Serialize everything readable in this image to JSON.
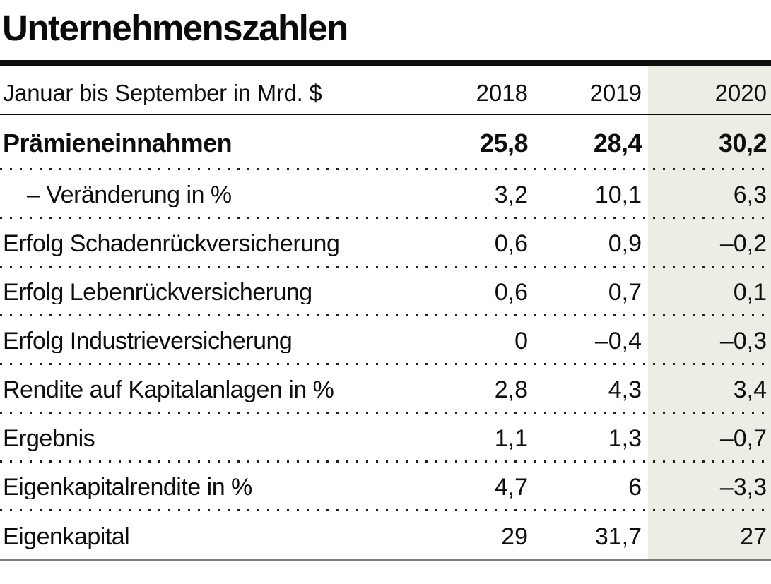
{
  "title": "Unternehmenszahlen",
  "table": {
    "unit_label": "Januar bis September in Mrd. $",
    "years": [
      "2018",
      "2019",
      "2020"
    ],
    "rows": [
      {
        "label": "Prämieneinnahmen",
        "values": [
          "25,8",
          "28,4",
          "30,2"
        ],
        "bold": true,
        "indent": false
      },
      {
        "label": "– Veränderung in %",
        "values": [
          "3,2",
          "10,1",
          "6,3"
        ],
        "bold": false,
        "indent": true
      },
      {
        "label": "Erfolg Schadenrückversicherung",
        "values": [
          "0,6",
          "0,9",
          "–0,2"
        ],
        "bold": false,
        "indent": false
      },
      {
        "label": "Erfolg Lebenrückversicherung",
        "values": [
          "0,6",
          "0,7",
          "0,1"
        ],
        "bold": false,
        "indent": false
      },
      {
        "label": "Erfolg Industrieversicherung",
        "values": [
          "0",
          "–0,4",
          "–0,3"
        ],
        "bold": false,
        "indent": false
      },
      {
        "label": "Rendite auf Kapitalanlagen in %",
        "values": [
          "2,8",
          "4,3",
          "3,4"
        ],
        "bold": false,
        "indent": false
      },
      {
        "label": "Ergebnis",
        "values": [
          "1,1",
          "1,3",
          "–0,7"
        ],
        "bold": false,
        "indent": false
      },
      {
        "label": "Eigenkapitalrendite in %",
        "values": [
          "4,7",
          "6",
          "–3,3"
        ],
        "bold": false,
        "indent": false
      },
      {
        "label": "Eigenkapital",
        "values": [
          "29",
          "31,7",
          "27"
        ],
        "bold": false,
        "indent": false
      }
    ]
  },
  "colors": {
    "highlight_column_bg": "#edece5",
    "rule_black": "#0d0d0d",
    "bottom_rule_gray": "#7c7c7c",
    "dotted_separator": "#1f1f1f",
    "text": "#0e0e0e"
  },
  "chart_data": {
    "type": "table",
    "title": "Unternehmenszahlen",
    "subtitle": "Januar bis September in Mrd. $",
    "categories": [
      "Prämieneinnahmen",
      "– Veränderung in %",
      "Erfolg Schadenrückversicherung",
      "Erfolg Lebenrückversicherung",
      "Erfolg Industrieversicherung",
      "Rendite auf Kapitalanlagen in %",
      "Ergebnis",
      "Eigenkapitalrendite in %",
      "Eigenkapital"
    ],
    "series": [
      {
        "name": "2018",
        "values": [
          25.8,
          3.2,
          0.6,
          0.6,
          0,
          2.8,
          1.1,
          4.7,
          29
        ]
      },
      {
        "name": "2019",
        "values": [
          28.4,
          10.1,
          0.9,
          0.7,
          -0.4,
          4.3,
          1.3,
          6,
          31.7
        ]
      },
      {
        "name": "2020",
        "values": [
          30.2,
          6.3,
          -0.2,
          0.1,
          -0.3,
          3.4,
          -0.7,
          -3.3,
          27
        ]
      }
    ],
    "highlight_column": "2020",
    "layout": {
      "value_alignment": "right",
      "highlighted_column_index": 2,
      "grid": "dotted-row-separators"
    }
  }
}
